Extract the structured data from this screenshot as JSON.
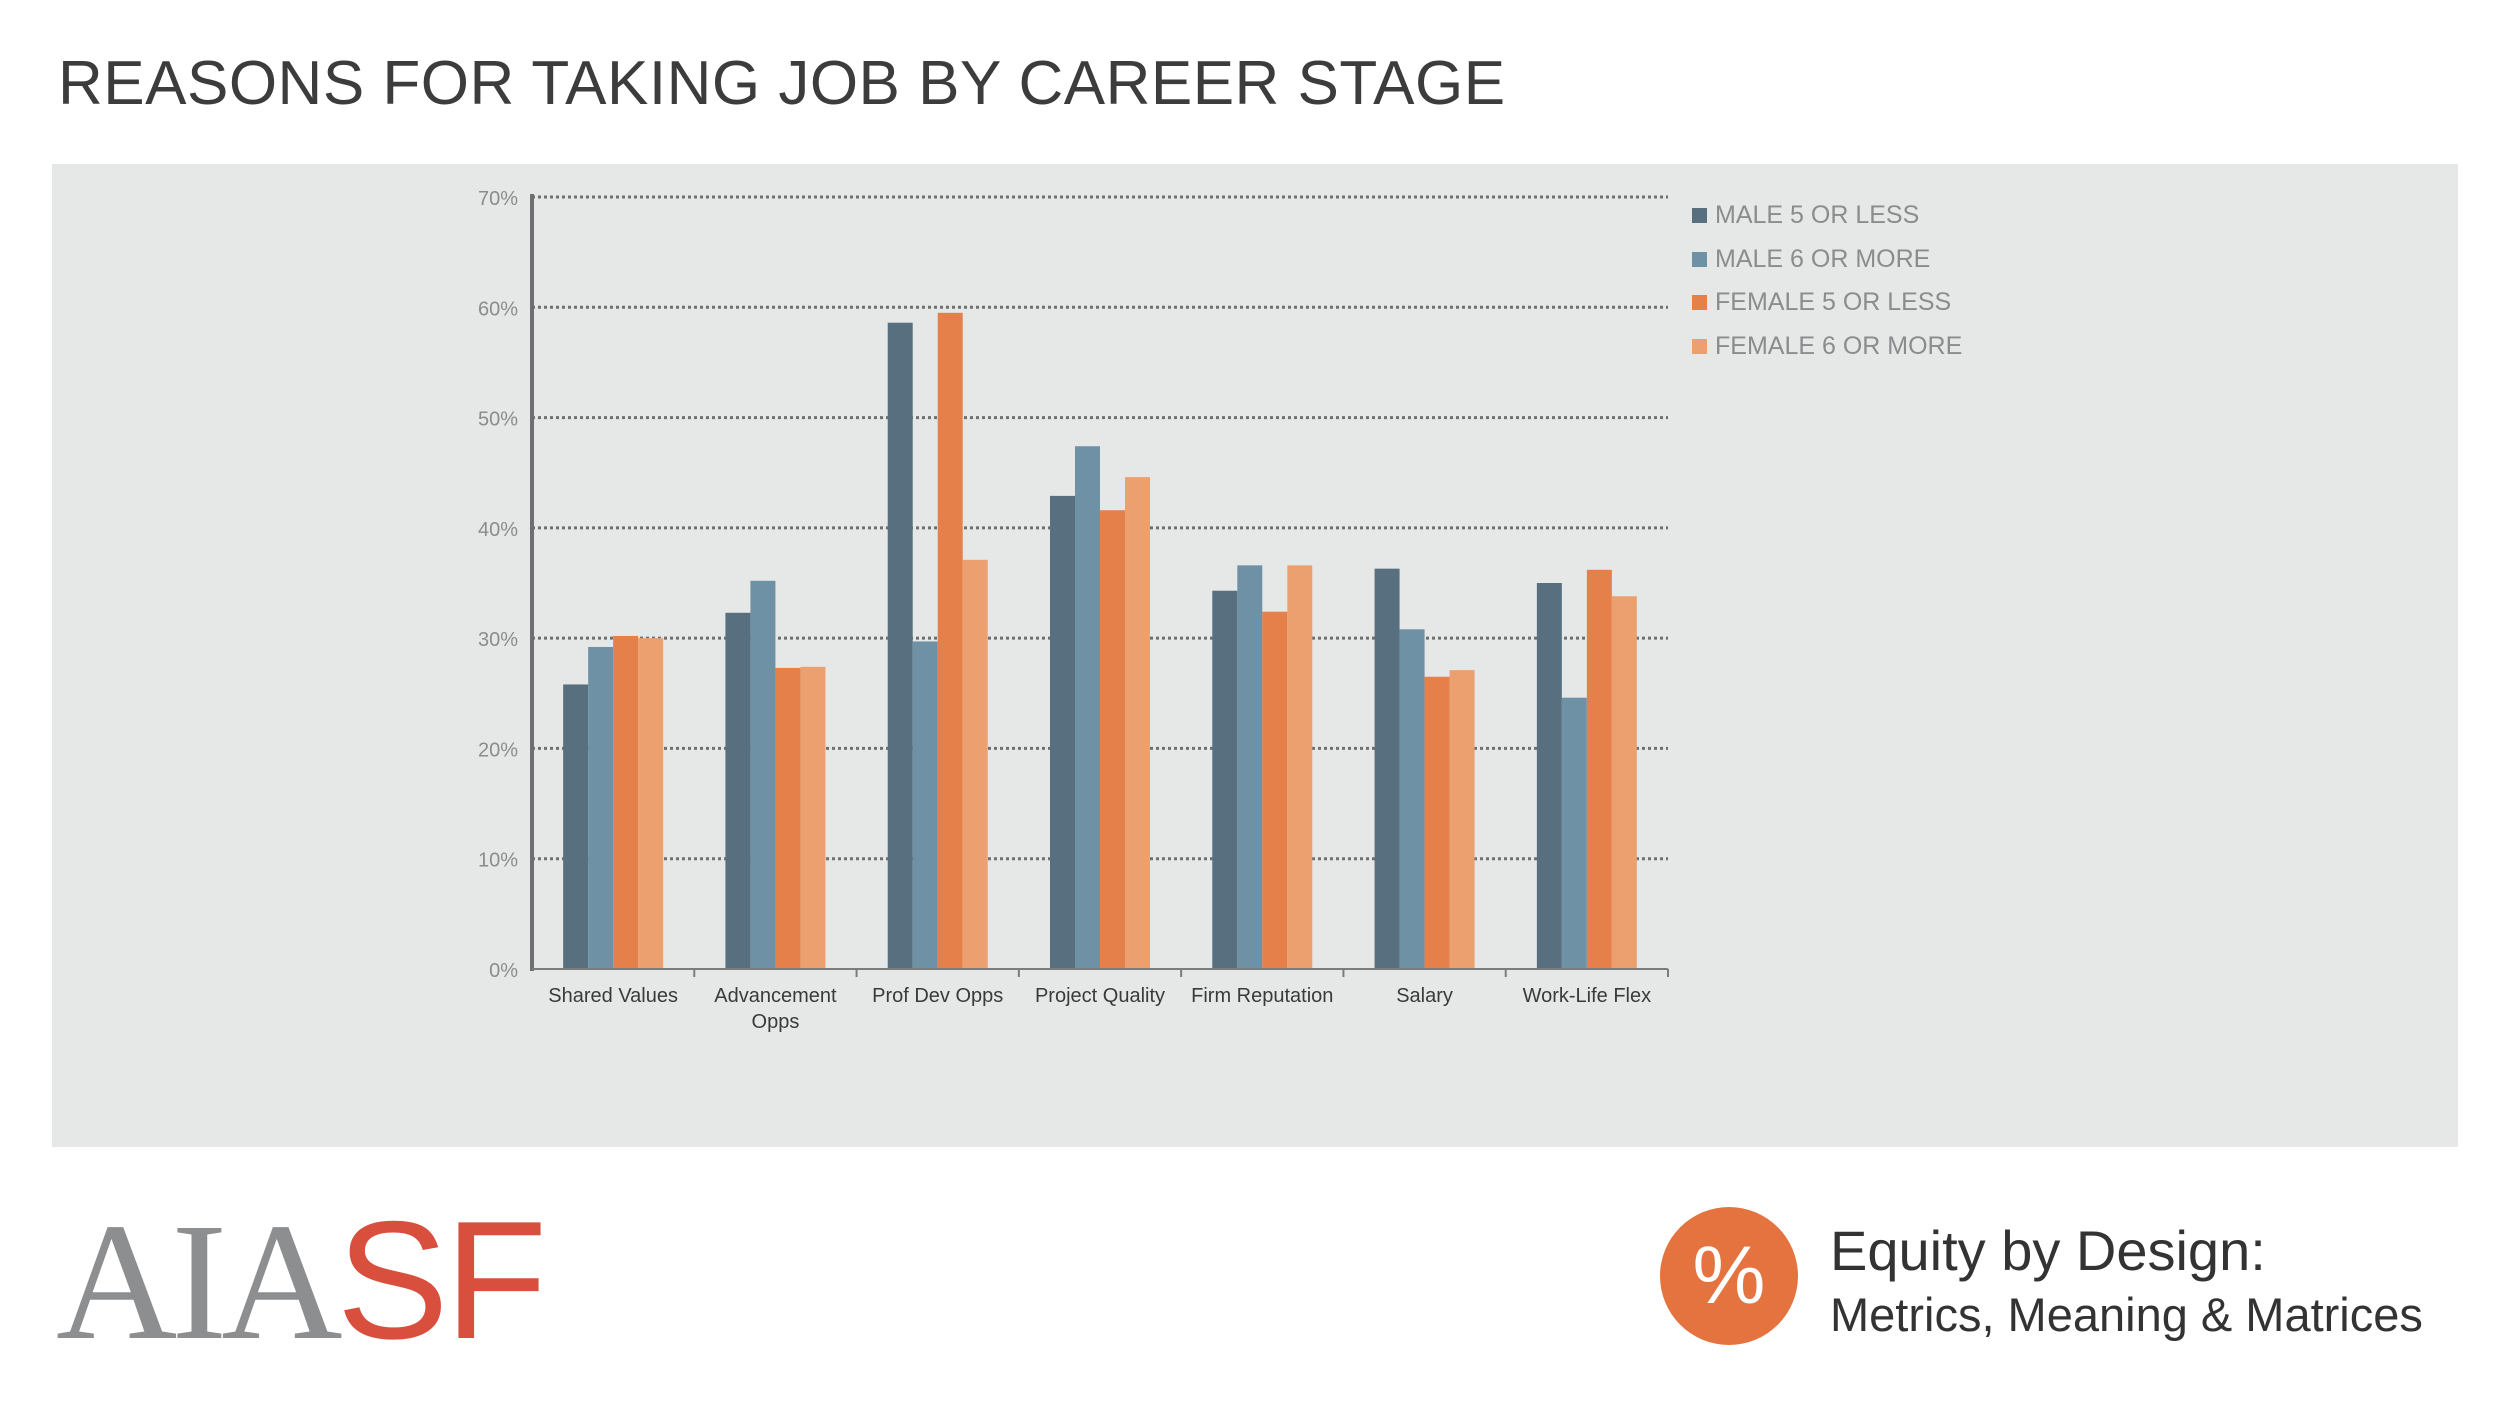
{
  "page": {
    "title": "REASONS FOR TAKING JOB BY CAREER STAGE"
  },
  "chart_data": {
    "type": "bar",
    "categories": [
      "Shared Values",
      "Advancement Opps",
      "Prof Dev Opps",
      "Project Quality",
      "Firm Reputation",
      "Salary",
      "Work-Life Flex"
    ],
    "category_label_lines": [
      [
        "Shared Values"
      ],
      [
        "Advancement",
        "Opps"
      ],
      [
        "Prof Dev Opps"
      ],
      [
        "Project Quality"
      ],
      [
        "Firm Reputation"
      ],
      [
        "Salary"
      ],
      [
        "Work-Life Flex"
      ]
    ],
    "series": [
      {
        "name": "MALE 5 OR LESS",
        "color": "#576f7e",
        "values": [
          25.8,
          32.3,
          58.6,
          42.9,
          34.3,
          36.3,
          35.0
        ]
      },
      {
        "name": "MALE 6 OR MORE",
        "color": "#6f91a5",
        "values": [
          29.2,
          35.2,
          29.7,
          47.4,
          36.6,
          30.8,
          24.6
        ]
      },
      {
        "name": "FEMALE 5 OR LESS",
        "color": "#e5804b",
        "values": [
          30.2,
          27.3,
          59.5,
          41.6,
          32.4,
          26.5,
          36.2
        ]
      },
      {
        "name": "FEMALE 6 OR MORE",
        "color": "#eda06f",
        "values": [
          30.0,
          27.4,
          37.1,
          44.6,
          36.6,
          27.1,
          33.8
        ]
      }
    ],
    "yticks": [
      "0%",
      "10%",
      "20%",
      "30%",
      "40%",
      "50%",
      "60%",
      "70%"
    ],
    "ylim": [
      0,
      70
    ],
    "grid": true,
    "legend_position": "top-right",
    "title": "",
    "xlabel": "",
    "ylabel": ""
  },
  "footer": {
    "logo_left": "AIA",
    "logo_right": "SF",
    "badge_symbol": "%",
    "equity_title": "Equity by Design:",
    "equity_subtitle": "Metrics, Meaning & Matrices"
  }
}
